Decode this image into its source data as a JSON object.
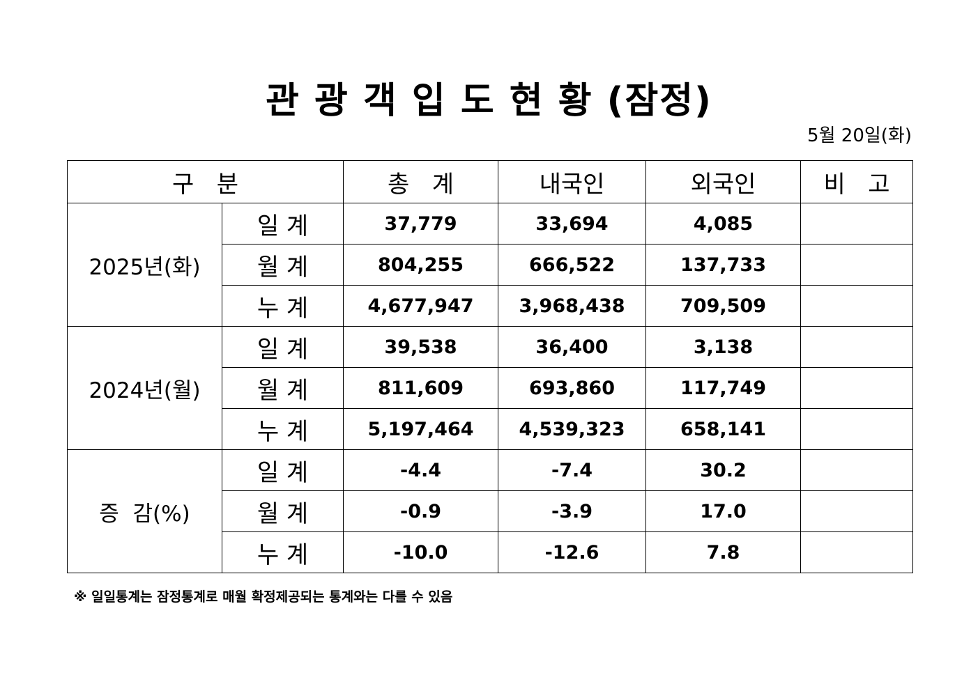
{
  "title": "관 광 객 입 도 현 황 (잠정)",
  "date": "5월  20일(화)",
  "table": {
    "headers": {
      "category": "구   분",
      "total": "총   계",
      "domestic": "내국인",
      "foreign": "외국인",
      "remarks": "비   고"
    },
    "groups": [
      {
        "label": "2025년(화)",
        "rows": [
          {
            "period": "일 계",
            "total": "37,779",
            "domestic": "33,694",
            "foreign": "4,085",
            "remarks": ""
          },
          {
            "period": "월 계",
            "total": "804,255",
            "domestic": "666,522",
            "foreign": "137,733",
            "remarks": ""
          },
          {
            "period": "누 계",
            "total": "4,677,947",
            "domestic": "3,968,438",
            "foreign": "709,509",
            "remarks": ""
          }
        ]
      },
      {
        "label": "2024년(월)",
        "rows": [
          {
            "period": "일 계",
            "total": "39,538",
            "domestic": "36,400",
            "foreign": "3,138",
            "remarks": ""
          },
          {
            "period": "월 계",
            "total": "811,609",
            "domestic": "693,860",
            "foreign": "117,749",
            "remarks": ""
          },
          {
            "period": "누 계",
            "total": "5,197,464",
            "domestic": "4,539,323",
            "foreign": "658,141",
            "remarks": ""
          }
        ]
      },
      {
        "label": "증  감(%)",
        "rows": [
          {
            "period": "일 계",
            "total": "-4.4",
            "domestic": "-7.4",
            "foreign": "30.2",
            "remarks": ""
          },
          {
            "period": "월 계",
            "total": "-0.9",
            "domestic": "-3.9",
            "foreign": "17.0",
            "remarks": ""
          },
          {
            "period": "누 계",
            "total": "-10.0",
            "domestic": "-12.6",
            "foreign": "7.8",
            "remarks": ""
          }
        ]
      }
    ]
  },
  "footnote": "※ 일일통계는 잠정통계로 매월 확정제공되는 통계와는 다를 수 있음"
}
